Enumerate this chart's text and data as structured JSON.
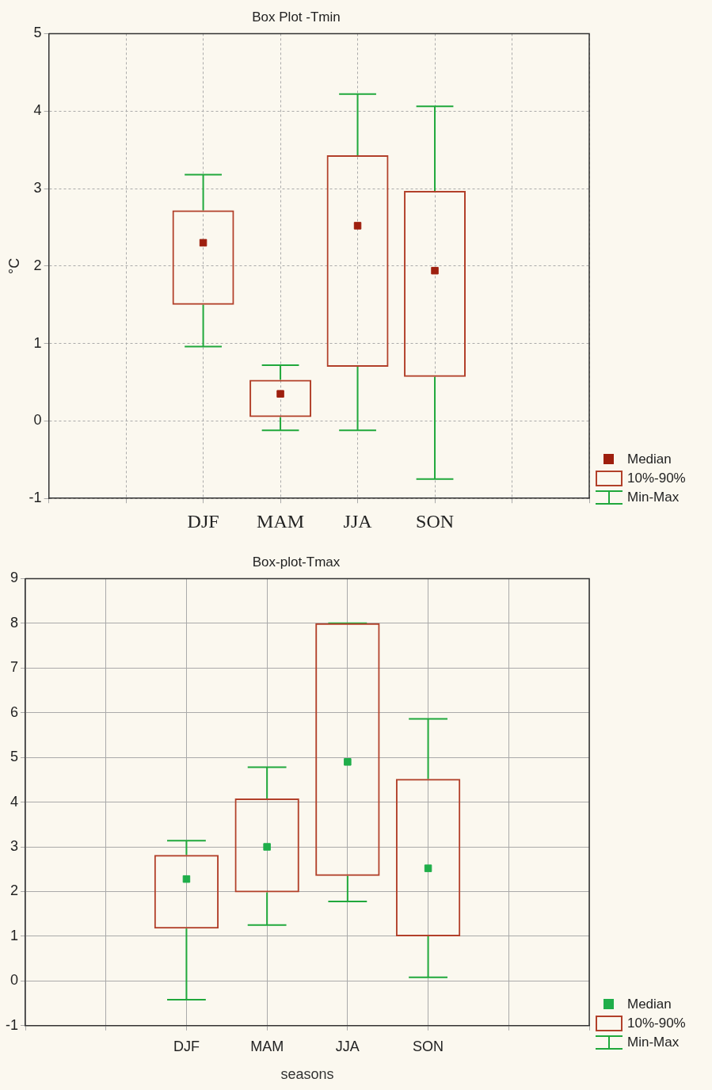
{
  "chart_data": [
    {
      "type": "box",
      "title": "Box Plot -Tmin",
      "ylabel": "°C",
      "categories": [
        null,
        null,
        "DJF",
        "MAM",
        "JJA",
        "SON",
        null,
        null
      ],
      "series": [
        {
          "color": "#b2402a",
          "boxes": [
            null,
            null,
            {
              "low": 0.96,
              "q1": 1.5,
              "median": 2.3,
              "q3": 2.72,
              "high": 3.18
            },
            {
              "low": -0.12,
              "q1": 0.05,
              "median": 0.35,
              "q3": 0.53,
              "high": 0.72
            },
            {
              "low": -0.12,
              "q1": 0.7,
              "median": 2.52,
              "q3": 3.43,
              "high": 4.22
            },
            {
              "low": -0.75,
              "q1": 0.57,
              "median": 1.94,
              "q3": 2.97,
              "high": 4.06
            },
            null,
            null
          ]
        }
      ],
      "ylim": [
        -1,
        5
      ],
      "yticks": [
        -1,
        0,
        1,
        2,
        3,
        4,
        5
      ],
      "grid": true,
      "annotations": [
        "Median",
        "10%-90%",
        "Min-Max"
      ]
    },
    {
      "type": "box",
      "title": "Box-plot-Tmax",
      "xlabel": "seasons",
      "categories": [
        null,
        null,
        "DJF",
        "MAM",
        "JJA",
        "SON",
        null,
        null
      ],
      "series": [
        {
          "color": "#b2402a",
          "boxes": [
            null,
            null,
            {
              "low": -0.42,
              "q1": 1.17,
              "median": 2.28,
              "q3": 2.82,
              "high": 3.14
            },
            {
              "low": 1.25,
              "q1": 1.98,
              "median": 3.0,
              "q3": 4.08,
              "high": 4.78
            },
            {
              "low": 1.78,
              "q1": 2.35,
              "median": 4.9,
              "q3": 8.0,
              "high": 8.0
            },
            {
              "low": 0.08,
              "q1": 1.0,
              "median": 2.52,
              "q3": 4.52,
              "high": 5.86
            },
            null,
            null
          ]
        }
      ],
      "ylim": [
        -1,
        9
      ],
      "yticks": [
        -1,
        0,
        1,
        2,
        3,
        4,
        5,
        6,
        7,
        8,
        9
      ],
      "grid": true,
      "annotations": [
        "Median",
        "10%-90%",
        "Min-Max"
      ]
    }
  ]
}
